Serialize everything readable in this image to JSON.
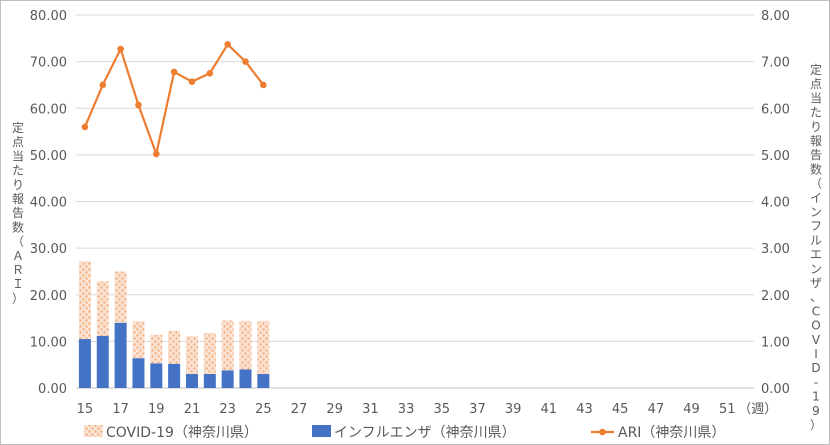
{
  "chart_data": {
    "type": "bar",
    "title": "",
    "weeks": [
      15,
      16,
      17,
      18,
      19,
      20,
      21,
      22,
      23,
      24,
      25
    ],
    "x_ticks": [
      "15",
      "17",
      "19",
      "21",
      "23",
      "25",
      "27",
      "29",
      "31",
      "33",
      "35",
      "37",
      "39",
      "41",
      "43",
      "45",
      "47",
      "49",
      "51"
    ],
    "x_unit": "（週）",
    "xlim": [
      15,
      52
    ],
    "y_left": {
      "label": "定点当たり報告数（ＡＲＩ）",
      "lim": [
        0,
        80
      ],
      "ticks": [
        "0.00",
        "10.00",
        "20.00",
        "30.00",
        "40.00",
        "50.00",
        "60.00",
        "70.00",
        "80.00"
      ]
    },
    "y_right": {
      "label": "定点当たり報告数（インフルエンザ、COVID-19）",
      "lim": [
        0,
        8
      ],
      "ticks": [
        "0.00",
        "1.00",
        "2.00",
        "3.00",
        "4.00",
        "5.00",
        "6.00",
        "7.00",
        "8.00"
      ]
    },
    "grid": true,
    "legend_position": "bottom",
    "series": [
      {
        "name": "COVID-19（神奈川県）",
        "type": "bar-stacked",
        "axis": "right",
        "color": "#f4b183",
        "values": [
          1.67,
          1.17,
          1.1,
          0.79,
          0.61,
          0.71,
          0.81,
          0.88,
          1.07,
          1.04,
          1.14
        ]
      },
      {
        "name": "インフルエンザ（神奈川県）",
        "type": "bar-stacked",
        "axis": "right",
        "color": "#4472c4",
        "values": [
          1.05,
          1.12,
          1.4,
          0.64,
          0.53,
          0.52,
          0.3,
          0.3,
          0.38,
          0.4,
          0.3
        ]
      },
      {
        "name": "ARI（神奈川県）",
        "type": "line",
        "axis": "left",
        "color": "#ed7d31",
        "values": [
          56.0,
          65.0,
          72.7,
          60.7,
          50.2,
          67.8,
          65.7,
          67.5,
          73.7,
          70.0,
          65.0
        ]
      }
    ]
  }
}
